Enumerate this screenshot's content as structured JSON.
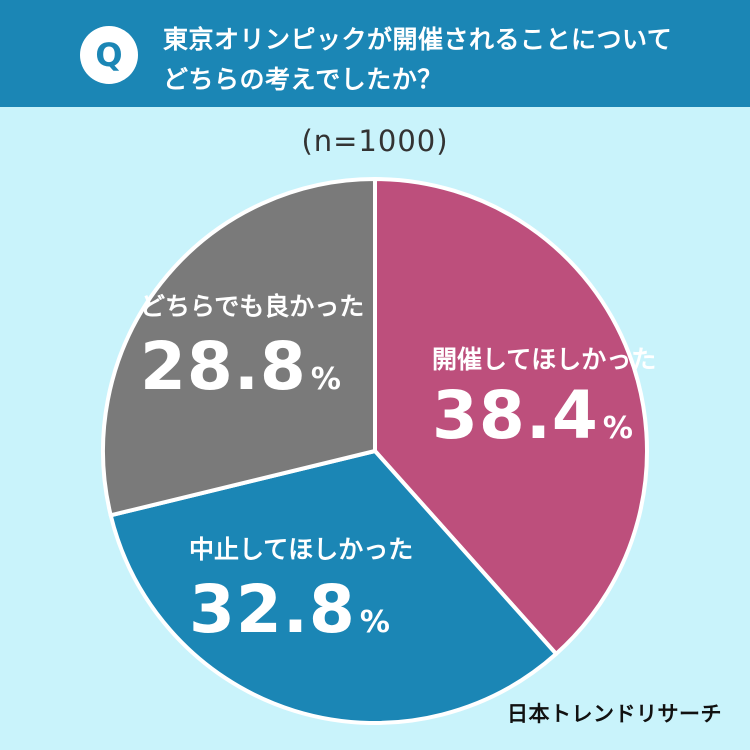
{
  "header": {
    "badge": "Q",
    "question_line1": "東京オリンピックが開催されることについて",
    "question_line2": "どちらの考えでしたか？"
  },
  "sample_size": "(n=1000)",
  "brand": "日本トレンドリサーチ",
  "colors": {
    "header_bg": "#1b86b5",
    "page_bg": "#c9f3fb",
    "open": "#bd4f7c",
    "cancel": "#1b86b5",
    "either": "#7a7a7a"
  },
  "chart_data": {
    "type": "pie",
    "title": "東京オリンピックが開催されることについてどちらの考えでしたか？",
    "categories": [
      "開催してほしかった",
      "中止してほしかった",
      "どちらでも良かった"
    ],
    "values": [
      38.4,
      32.8,
      28.8
    ],
    "unit": "%",
    "labels": {
      "open": {
        "name": "開催してほしかった",
        "value": "38.4",
        "unit": "%"
      },
      "cancel": {
        "name": "中止してほしかった",
        "value": "32.8",
        "unit": "%"
      },
      "either": {
        "name": "どちらでも良かった",
        "value": "28.8",
        "unit": "%"
      }
    }
  }
}
